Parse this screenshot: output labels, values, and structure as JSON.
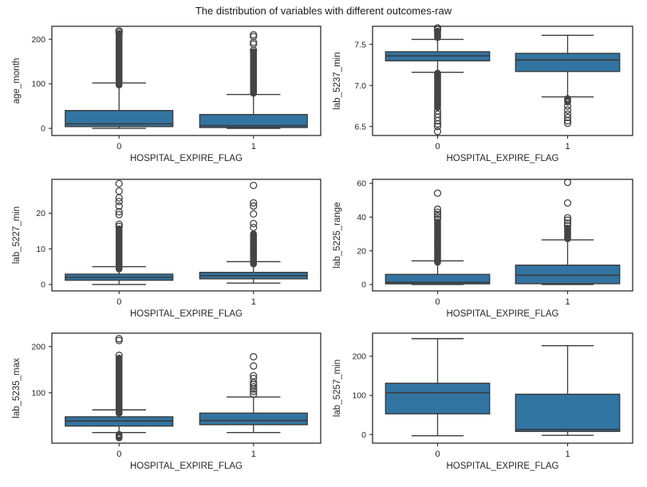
{
  "title": "The distribution of variables with different outcomes-raw",
  "style": {
    "box_fill": "#3274a1",
    "line_color": "#3b3b3b",
    "spine_color": "#2b2b2b",
    "outlier_color": "#454545",
    "text_color": "#262626",
    "background": "#ffffff"
  },
  "chart_data": [
    {
      "type": "box",
      "ylabel": "age_month",
      "xlabel": "HOSPITAL_EXPIRE_FLAG",
      "categories": [
        "0",
        "1"
      ],
      "ylim": [
        -16,
        229
      ],
      "yticks": [
        {
          "v": 0,
          "label": "0"
        },
        {
          "v": 100,
          "label": "100"
        },
        {
          "v": 200,
          "label": "200"
        }
      ],
      "boxes": [
        {
          "category": "0",
          "whislo": 0,
          "q1": 4,
          "med": 10,
          "q3": 40,
          "whishi": 102,
          "outliers_dense": [
            [
              97,
              213
            ]
          ],
          "outliers": [
            216,
            219
          ]
        },
        {
          "category": "1",
          "whislo": 0,
          "q1": 2,
          "med": 6,
          "q3": 31,
          "whishi": 76,
          "outliers_dense": [
            [
              78,
              172
            ]
          ],
          "outliers": [
            175,
            189,
            193,
            206,
            210
          ]
        }
      ]
    },
    {
      "type": "box",
      "ylabel": "lab_5237_min",
      "xlabel": "HOSPITAL_EXPIRE_FLAG",
      "categories": [
        "0",
        "1"
      ],
      "ylim": [
        6.39,
        7.72
      ],
      "yticks": [
        {
          "v": 6.5,
          "label": "6.5"
        },
        {
          "v": 7.0,
          "label": "7.0"
        },
        {
          "v": 7.5,
          "label": "7.5"
        }
      ],
      "boxes": [
        {
          "category": "0",
          "whislo": 7.16,
          "q1": 7.3,
          "med": 7.36,
          "q3": 7.41,
          "whishi": 7.56,
          "outliers_dense": [
            [
              6.73,
              7.15
            ],
            [
              7.58,
              7.66
            ]
          ],
          "outliers": [
            6.44,
            6.5,
            6.53,
            6.57,
            6.61,
            6.65,
            6.69,
            7.68,
            7.7
          ]
        },
        {
          "category": "1",
          "whislo": 6.86,
          "q1": 7.17,
          "med": 7.31,
          "q3": 7.39,
          "whishi": 7.61,
          "outliers_dense": [
            [
              6.79,
              6.84
            ]
          ],
          "outliers": [
            6.54,
            6.57,
            6.61,
            6.65,
            6.7,
            6.75
          ]
        }
      ]
    },
    {
      "type": "box",
      "ylabel": "lab_5227_min",
      "xlabel": "HOSPITAL_EXPIRE_FLAG",
      "categories": [
        "0",
        "1"
      ],
      "ylim": [
        -1.8,
        29.5
      ],
      "yticks": [
        {
          "v": 0,
          "label": "0"
        },
        {
          "v": 10,
          "label": "10"
        },
        {
          "v": 20,
          "label": "20"
        }
      ],
      "boxes": [
        {
          "category": "0",
          "whislo": 0,
          "q1": 1.2,
          "med": 2.0,
          "q3": 2.9,
          "whishi": 5.0,
          "outliers_dense": [
            [
              4.2,
              15.6
            ]
          ],
          "outliers": [
            16.3,
            16.9,
            19.6,
            20.4,
            22.0,
            23.3,
            24.3,
            26.2,
            28.3
          ]
        },
        {
          "category": "1",
          "whislo": 0.4,
          "q1": 1.6,
          "med": 2.5,
          "q3": 3.4,
          "whishi": 6.4,
          "outliers_dense": [
            [
              5.6,
              14.2
            ]
          ],
          "outliers": [
            16.0,
            17.1,
            19.8,
            22.0,
            22.9,
            27.8
          ]
        }
      ]
    },
    {
      "type": "box",
      "ylabel": "lab_5225_range",
      "xlabel": "HOSPITAL_EXPIRE_FLAG",
      "categories": [
        "0",
        "1"
      ],
      "ylim": [
        -3.8,
        62.4
      ],
      "yticks": [
        {
          "v": 0,
          "label": "0"
        },
        {
          "v": 20,
          "label": "20"
        },
        {
          "v": 40,
          "label": "40"
        },
        {
          "v": 60,
          "label": "60"
        }
      ],
      "boxes": [
        {
          "category": "0",
          "whislo": 0,
          "q1": 0.4,
          "med": 1.3,
          "q3": 6.0,
          "whishi": 14.0,
          "outliers_dense": [
            [
              13.0,
              37.0
            ]
          ],
          "outliers": [
            38.6,
            40.3,
            41.6,
            42.9,
            44.7,
            54.2
          ]
        },
        {
          "category": "1",
          "whislo": 0,
          "q1": 0.5,
          "med": 5.5,
          "q3": 11.5,
          "whishi": 26.5,
          "outliers_dense": [
            [
              27.0,
              33.5
            ]
          ],
          "outliers": [
            34.8,
            36.4,
            38.2,
            39.6,
            48.4,
            60.6
          ]
        }
      ]
    },
    {
      "type": "box",
      "ylabel": "lab_5235_max",
      "xlabel": "HOSPITAL_EXPIRE_FLAG",
      "categories": [
        "0",
        "1"
      ],
      "ylim": [
        -9,
        229
      ],
      "yticks": [
        {
          "v": 100,
          "label": "100"
        },
        {
          "v": 200,
          "label": "200"
        }
      ],
      "boxes": [
        {
          "category": "0",
          "whislo": 14,
          "q1": 28,
          "med": 39,
          "q3": 48,
          "whishi": 63,
          "outliers_dense": [
            [
              55,
              175
            ],
            [
              2,
              10
            ]
          ],
          "outliers": [
            181,
            213,
            217
          ]
        },
        {
          "category": "1",
          "whislo": 14,
          "q1": 31,
          "med": 40,
          "q3": 56,
          "whishi": 91,
          "outliers_dense": [],
          "outliers": [
            97,
            103,
            108,
            113,
            118,
            122,
            131,
            137,
            158,
            178
          ]
        }
      ]
    },
    {
      "type": "box",
      "ylabel": "lab_5257_min",
      "xlabel": "HOSPITAL_EXPIRE_FLAG",
      "categories": [
        "0",
        "1"
      ],
      "ylim": [
        -22,
        259
      ],
      "yticks": [
        {
          "v": 0,
          "label": "0"
        },
        {
          "v": 100,
          "label": "100"
        },
        {
          "v": 200,
          "label": "200"
        }
      ],
      "boxes": [
        {
          "category": "0",
          "whislo": -3,
          "q1": 53,
          "med": 107,
          "q3": 131,
          "whishi": 245,
          "outliers_dense": [],
          "outliers": []
        },
        {
          "category": "1",
          "whislo": -2,
          "q1": 8,
          "med": 13,
          "q3": 103,
          "whishi": 227,
          "outliers_dense": [],
          "outliers": []
        }
      ]
    }
  ]
}
